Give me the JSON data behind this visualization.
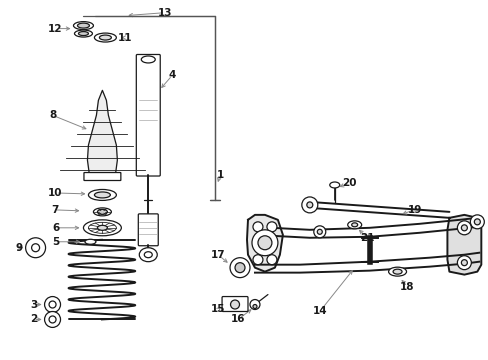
{
  "bg_color": "#ffffff",
  "fig_width": 4.89,
  "fig_height": 3.6,
  "dpi": 100,
  "line_color": "#1a1a1a",
  "gray_color": "#888888",
  "label_fs": 7.5,
  "bracket_color": "#666666"
}
